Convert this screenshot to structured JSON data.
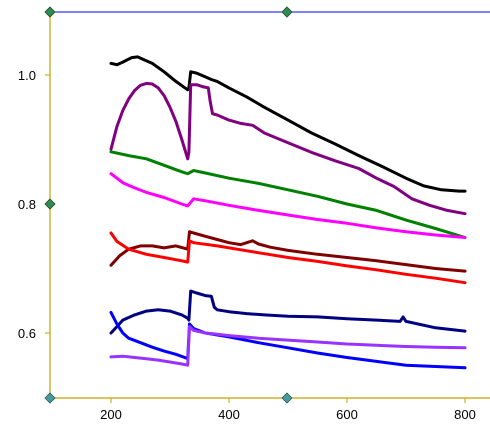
{
  "chart_data": {
    "type": "line",
    "title": "",
    "xlabel": "",
    "ylabel": "",
    "xlim": [
      100,
      810
    ],
    "ylim": [
      0.5,
      1.1
    ],
    "x_ticks": [
      "200",
      "400",
      "600",
      "800"
    ],
    "x_tick_values": [
      200,
      400,
      600,
      800
    ],
    "y_ticks": [
      "0.6",
      "0.8",
      "1.0"
    ],
    "y_tick_values": [
      0.6,
      0.8,
      1.0
    ],
    "grid": false,
    "legend": "none",
    "series": [
      {
        "color": "#000000",
        "x": [
          200,
          210,
          220,
          235,
          245,
          255,
          270,
          290,
          310,
          330,
          332,
          335,
          345,
          360,
          370,
          380,
          400,
          430,
          460,
          500,
          540,
          580,
          620,
          660,
          700,
          730,
          760,
          790,
          800
        ],
        "y": [
          1.018,
          1.016,
          1.02,
          1.027,
          1.028,
          1.024,
          1.018,
          1.005,
          0.99,
          0.977,
          0.98,
          1.005,
          1.003,
          0.997,
          0.993,
          0.99,
          0.98,
          0.966,
          0.95,
          0.93,
          0.91,
          0.893,
          0.875,
          0.858,
          0.84,
          0.828,
          0.822,
          0.82,
          0.82
        ]
      },
      {
        "color": "#800080",
        "x": [
          200,
          210,
          220,
          230,
          240,
          250,
          260,
          270,
          280,
          290,
          300,
          310,
          320,
          330,
          332,
          335,
          345,
          355,
          365,
          368,
          372,
          380,
          400,
          420,
          440,
          460,
          500,
          540,
          580,
          620,
          650,
          680,
          710,
          740,
          770,
          800
        ],
        "y": [
          0.885,
          0.92,
          0.945,
          0.963,
          0.976,
          0.984,
          0.987,
          0.986,
          0.98,
          0.968,
          0.95,
          0.928,
          0.9,
          0.87,
          0.88,
          0.985,
          0.985,
          0.982,
          0.98,
          0.96,
          0.94,
          0.938,
          0.93,
          0.925,
          0.922,
          0.91,
          0.895,
          0.88,
          0.867,
          0.855,
          0.84,
          0.827,
          0.808,
          0.798,
          0.79,
          0.785
        ]
      },
      {
        "color": "#008000",
        "x": [
          200,
          230,
          260,
          290,
          320,
          330,
          340,
          360,
          400,
          450,
          500,
          550,
          600,
          650,
          700,
          750,
          800
        ],
        "y": [
          0.881,
          0.875,
          0.87,
          0.86,
          0.85,
          0.847,
          0.852,
          0.848,
          0.84,
          0.832,
          0.822,
          0.812,
          0.8,
          0.79,
          0.775,
          0.762,
          0.748
        ]
      },
      {
        "color": "#ff00ff",
        "x": [
          200,
          220,
          240,
          260,
          290,
          320,
          330,
          340,
          360,
          400,
          450,
          500,
          550,
          600,
          650,
          700,
          750,
          800
        ],
        "y": [
          0.847,
          0.833,
          0.825,
          0.818,
          0.81,
          0.8,
          0.797,
          0.808,
          0.805,
          0.798,
          0.79,
          0.783,
          0.776,
          0.77,
          0.763,
          0.757,
          0.752,
          0.748
        ]
      },
      {
        "color": "#800000",
        "x": [
          200,
          215,
          230,
          250,
          270,
          290,
          310,
          330,
          333,
          340,
          360,
          380,
          400,
          420,
          440,
          450,
          470,
          500,
          550,
          600,
          650,
          700,
          750,
          800
        ],
        "y": [
          0.705,
          0.72,
          0.73,
          0.735,
          0.735,
          0.732,
          0.735,
          0.73,
          0.757,
          0.755,
          0.75,
          0.745,
          0.74,
          0.737,
          0.743,
          0.738,
          0.733,
          0.728,
          0.722,
          0.717,
          0.712,
          0.706,
          0.7,
          0.696
        ]
      },
      {
        "color": "#ff0000",
        "x": [
          200,
          210,
          230,
          260,
          290,
          320,
          330,
          333,
          340,
          380,
          420,
          460,
          500,
          550,
          600,
          650,
          700,
          750,
          800
        ],
        "y": [
          0.755,
          0.742,
          0.73,
          0.722,
          0.717,
          0.712,
          0.71,
          0.743,
          0.74,
          0.735,
          0.729,
          0.723,
          0.717,
          0.711,
          0.704,
          0.698,
          0.691,
          0.685,
          0.678
        ]
      },
      {
        "color": "#000080",
        "x": [
          200,
          210,
          220,
          240,
          260,
          280,
          300,
          320,
          330,
          332,
          335,
          345,
          360,
          370,
          375,
          380,
          400,
          430,
          460,
          500,
          550,
          600,
          650,
          690,
          695,
          700,
          750,
          800
        ],
        "y": [
          0.6,
          0.61,
          0.62,
          0.628,
          0.634,
          0.636,
          0.634,
          0.628,
          0.623,
          0.62,
          0.665,
          0.662,
          0.658,
          0.657,
          0.64,
          0.636,
          0.633,
          0.63,
          0.628,
          0.626,
          0.625,
          0.622,
          0.62,
          0.618,
          0.625,
          0.618,
          0.608,
          0.603
        ]
      },
      {
        "color": "#0000ff",
        "x": [
          200,
          210,
          220,
          230,
          250,
          270,
          290,
          310,
          325,
          330,
          333,
          340,
          360,
          400,
          450,
          500,
          550,
          600,
          650,
          700,
          750,
          800
        ],
        "y": [
          0.632,
          0.614,
          0.6,
          0.592,
          0.585,
          0.578,
          0.572,
          0.567,
          0.562,
          0.56,
          0.614,
          0.607,
          0.6,
          0.594,
          0.585,
          0.577,
          0.569,
          0.562,
          0.556,
          0.55,
          0.548,
          0.546
        ]
      },
      {
        "color": "#9933ff",
        "x": [
          200,
          220,
          240,
          260,
          280,
          300,
          320,
          330,
          333,
          340,
          360,
          380,
          400,
          450,
          500,
          550,
          600,
          650,
          700,
          750,
          800
        ],
        "y": [
          0.563,
          0.564,
          0.562,
          0.56,
          0.558,
          0.555,
          0.552,
          0.55,
          0.61,
          0.604,
          0.6,
          0.598,
          0.596,
          0.592,
          0.589,
          0.586,
          0.583,
          0.581,
          0.579,
          0.578,
          0.577
        ]
      }
    ]
  }
}
